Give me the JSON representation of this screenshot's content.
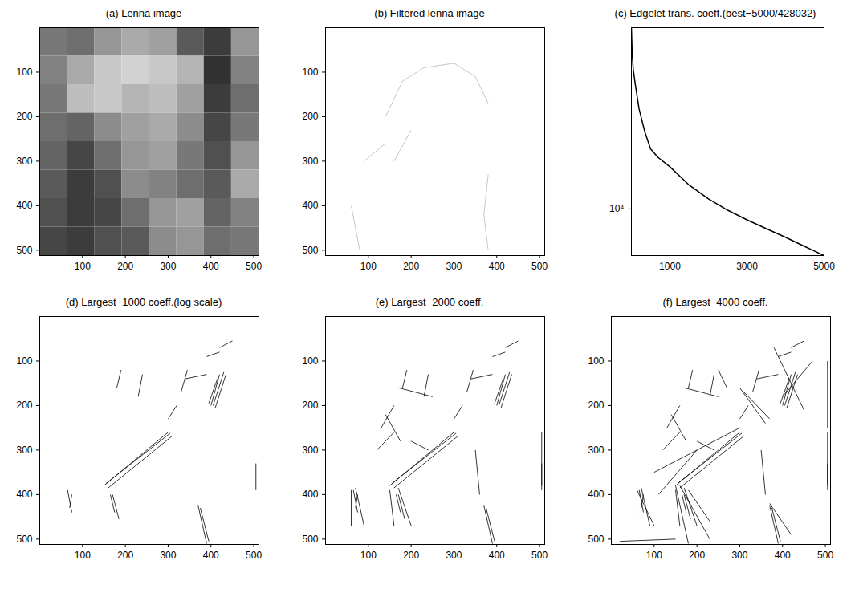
{
  "chart_data": [
    {
      "type": "heatmap",
      "title": "(a) Lenna image",
      "xlim": [
        0,
        512
      ],
      "ylim": [
        0,
        512
      ],
      "xticks": [
        100,
        200,
        300,
        400,
        500
      ],
      "yticks": [
        100,
        200,
        300,
        400,
        500
      ],
      "x_edges": [
        0,
        64,
        128,
        192,
        256,
        320,
        384,
        448,
        512
      ],
      "y_edges": [
        0,
        64,
        128,
        192,
        256,
        320,
        384,
        448,
        512
      ],
      "cells": [
        [
          120,
          110,
          150,
          170,
          160,
          90,
          60,
          150
        ],
        [
          130,
          170,
          200,
          210,
          200,
          180,
          50,
          130
        ],
        [
          120,
          190,
          200,
          180,
          190,
          160,
          60,
          110
        ],
        [
          110,
          100,
          140,
          160,
          170,
          140,
          70,
          120
        ],
        [
          100,
          70,
          110,
          150,
          160,
          120,
          80,
          150
        ],
        [
          90,
          60,
          80,
          140,
          130,
          110,
          90,
          170
        ],
        [
          80,
          60,
          70,
          110,
          150,
          160,
          100,
          130
        ],
        [
          70,
          60,
          80,
          90,
          140,
          150,
          110,
          120
        ]
      ]
    },
    {
      "type": "segments",
      "title": "(b) Filtered lenna image",
      "color": "#b8b8b8",
      "xlim": [
        0,
        512
      ],
      "ylim": [
        0,
        512
      ],
      "xticks": [
        100,
        200,
        300,
        400,
        500
      ],
      "yticks": [
        100,
        200,
        300,
        400,
        500
      ],
      "segments": [
        [
          140,
          200,
          180,
          120
        ],
        [
          180,
          120,
          230,
          90
        ],
        [
          230,
          90,
          300,
          80
        ],
        [
          300,
          80,
          350,
          110
        ],
        [
          350,
          110,
          380,
          170
        ],
        [
          200,
          230,
          160,
          300
        ],
        [
          380,
          330,
          370,
          420
        ],
        [
          370,
          420,
          380,
          500
        ],
        [
          90,
          300,
          140,
          260
        ],
        [
          60,
          400,
          80,
          500
        ]
      ]
    },
    {
      "type": "line",
      "title": "(c) Edgelet trans. coeff.(best−5000/428032)",
      "color": "#000000",
      "log": "y",
      "x": [
        1,
        20,
        50,
        100,
        200,
        350,
        500,
        700,
        1000,
        1500,
        2000,
        2500,
        3000,
        3500,
        4000,
        4500,
        5000
      ],
      "values": [
        40000,
        33000,
        29000,
        26000,
        21500,
        18000,
        15800,
        14800,
        13800,
        12000,
        10800,
        9900,
        9200,
        8600,
        8050,
        7500,
        7000
      ],
      "xlim": [
        1,
        5000
      ],
      "ylim": [
        7000,
        40000
      ],
      "xticks": [
        1000,
        3000,
        5000
      ],
      "yticks": [
        {
          "value": 10000,
          "label": "10⁴"
        }
      ]
    },
    {
      "type": "segments",
      "title": "(d) Largest−1000 coeff.(log scale)",
      "color": "#000000",
      "xlim": [
        0,
        512
      ],
      "ylim": [
        0,
        512
      ],
      "xticks": [
        100,
        200,
        300,
        400,
        500
      ],
      "yticks": [
        100,
        200,
        300,
        400,
        500
      ],
      "segments": [
        [
          150,
          380,
          300,
          260
        ],
        [
          155,
          375,
          305,
          262
        ],
        [
          160,
          385,
          310,
          268
        ],
        [
          400,
          200,
          420,
          130
        ],
        [
          405,
          200,
          430,
          125
        ],
        [
          410,
          205,
          435,
          130
        ],
        [
          395,
          195,
          415,
          140
        ],
        [
          180,
          160,
          190,
          120
        ],
        [
          330,
          170,
          345,
          120
        ],
        [
          370,
          425,
          390,
          510
        ],
        [
          375,
          430,
          395,
          505
        ],
        [
          165,
          400,
          175,
          440
        ],
        [
          170,
          400,
          185,
          455
        ],
        [
          65,
          390,
          75,
          440
        ],
        [
          75,
          400,
          70,
          430
        ],
        [
          340,
          140,
          390,
          130
        ],
        [
          390,
          90,
          420,
          80
        ],
        [
          420,
          70,
          450,
          55
        ],
        [
          230,
          180,
          240,
          130
        ],
        [
          300,
          230,
          320,
          200
        ],
        [
          505,
          330,
          505,
          390
        ]
      ]
    },
    {
      "type": "segments",
      "title": "(e) Largest−2000 coeff.",
      "color": "#000000",
      "xlim": [
        0,
        512
      ],
      "ylim": [
        0,
        512
      ],
      "xticks": [
        100,
        200,
        300,
        400,
        500
      ],
      "yticks": [
        100,
        200,
        300,
        400,
        500
      ],
      "segments": [
        [
          150,
          380,
          300,
          260
        ],
        [
          155,
          375,
          305,
          262
        ],
        [
          160,
          385,
          310,
          268
        ],
        [
          400,
          200,
          420,
          130
        ],
        [
          405,
          200,
          430,
          125
        ],
        [
          410,
          205,
          435,
          130
        ],
        [
          395,
          195,
          415,
          140
        ],
        [
          180,
          160,
          190,
          120
        ],
        [
          330,
          170,
          345,
          120
        ],
        [
          370,
          425,
          390,
          510
        ],
        [
          375,
          430,
          395,
          505
        ],
        [
          165,
          400,
          175,
          440
        ],
        [
          170,
          400,
          185,
          455
        ],
        [
          65,
          390,
          75,
          440
        ],
        [
          75,
          400,
          70,
          430
        ],
        [
          340,
          140,
          390,
          130
        ],
        [
          390,
          90,
          420,
          80
        ],
        [
          420,
          70,
          450,
          55
        ],
        [
          230,
          180,
          240,
          130
        ],
        [
          300,
          230,
          320,
          200
        ],
        [
          505,
          330,
          505,
          390
        ],
        [
          60,
          390,
          60,
          470
        ],
        [
          70,
          385,
          90,
          470
        ],
        [
          150,
          390,
          160,
          470
        ],
        [
          170,
          385,
          200,
          470
        ],
        [
          170,
          160,
          250,
          180
        ],
        [
          140,
          220,
          175,
          280
        ],
        [
          120,
          300,
          160,
          260
        ],
        [
          200,
          280,
          240,
          300
        ],
        [
          350,
          300,
          360,
          400
        ],
        [
          130,
          250,
          160,
          200
        ],
        [
          505,
          260,
          505,
          380
        ]
      ]
    },
    {
      "type": "segments",
      "title": "(f) Largest−4000 coeff.",
      "color": "#000000",
      "xlim": [
        0,
        512
      ],
      "ylim": [
        0,
        512
      ],
      "xticks": [
        100,
        200,
        300,
        400,
        500
      ],
      "yticks": [
        100,
        200,
        300,
        400,
        500
      ],
      "segments": [
        [
          150,
          380,
          300,
          260
        ],
        [
          155,
          375,
          305,
          262
        ],
        [
          160,
          385,
          310,
          268
        ],
        [
          400,
          200,
          420,
          130
        ],
        [
          405,
          200,
          430,
          125
        ],
        [
          410,
          205,
          435,
          130
        ],
        [
          395,
          195,
          415,
          140
        ],
        [
          180,
          160,
          190,
          120
        ],
        [
          330,
          170,
          345,
          120
        ],
        [
          370,
          425,
          390,
          510
        ],
        [
          375,
          430,
          395,
          505
        ],
        [
          165,
          400,
          175,
          440
        ],
        [
          170,
          400,
          185,
          455
        ],
        [
          65,
          390,
          75,
          440
        ],
        [
          75,
          400,
          70,
          430
        ],
        [
          340,
          140,
          390,
          130
        ],
        [
          390,
          90,
          420,
          80
        ],
        [
          420,
          70,
          450,
          55
        ],
        [
          230,
          180,
          240,
          130
        ],
        [
          300,
          230,
          320,
          200
        ],
        [
          505,
          330,
          505,
          390
        ],
        [
          60,
          390,
          60,
          470
        ],
        [
          70,
          385,
          90,
          470
        ],
        [
          150,
          390,
          160,
          470
        ],
        [
          170,
          385,
          200,
          470
        ],
        [
          170,
          160,
          250,
          180
        ],
        [
          140,
          220,
          175,
          280
        ],
        [
          120,
          300,
          160,
          260
        ],
        [
          200,
          280,
          240,
          300
        ],
        [
          350,
          300,
          360,
          400
        ],
        [
          130,
          250,
          160,
          200
        ],
        [
          505,
          260,
          505,
          380
        ],
        [
          100,
          350,
          300,
          250
        ],
        [
          110,
          400,
          200,
          300
        ],
        [
          20,
          505,
          150,
          500
        ],
        [
          150,
          380,
          180,
          510
        ],
        [
          160,
          380,
          230,
          500
        ],
        [
          370,
          420,
          420,
          490
        ],
        [
          300,
          160,
          360,
          240
        ],
        [
          310,
          170,
          370,
          230
        ],
        [
          380,
          70,
          450,
          210
        ],
        [
          400,
          180,
          470,
          100
        ],
        [
          60,
          390,
          100,
          470
        ],
        [
          180,
          390,
          230,
          460
        ],
        [
          505,
          100,
          505,
          250
        ],
        [
          250,
          120,
          270,
          160
        ]
      ]
    }
  ]
}
